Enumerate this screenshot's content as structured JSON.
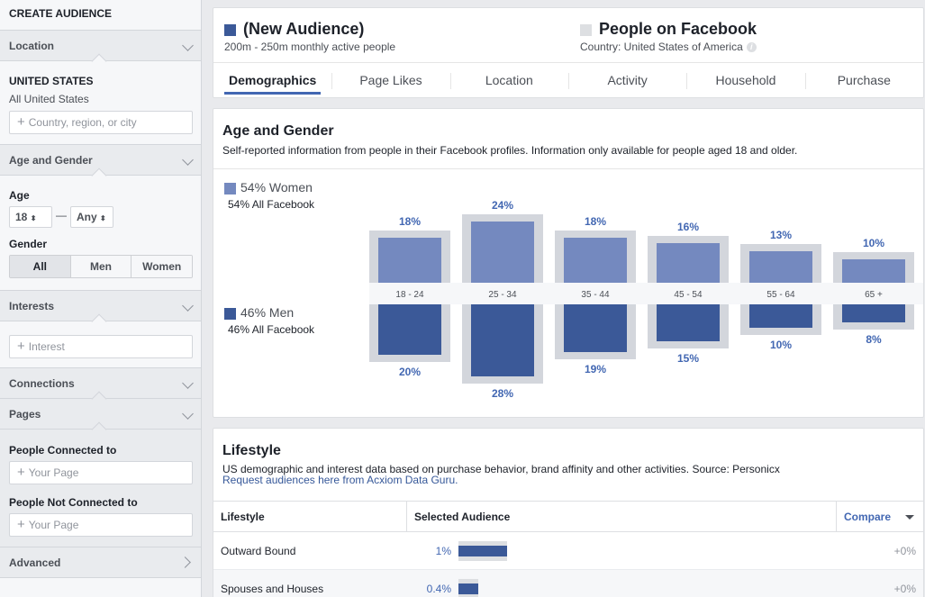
{
  "sidebar": {
    "title": "CREATE AUDIENCE",
    "location": {
      "header": "Location",
      "country": "UNITED STATES",
      "scope": "All United States",
      "placeholder": "Country, region, or city"
    },
    "age_gender": {
      "header": "Age and Gender",
      "age_label": "Age",
      "age_min": "18",
      "age_sep": "—",
      "age_max": "Any",
      "gender_label": "Gender",
      "genders": [
        "All",
        "Men",
        "Women"
      ]
    },
    "interests": {
      "header": "Interests",
      "placeholder": "Interest"
    },
    "connections": {
      "header": "Connections"
    },
    "pages": {
      "header": "Pages",
      "connected_label": "People Connected to",
      "connected_placeholder": "Your Page",
      "not_connected_label": "People Not Connected to",
      "not_connected_placeholder": "Your Page"
    },
    "advanced": {
      "header": "Advanced"
    }
  },
  "header": {
    "audience_title": "(New Audience)",
    "audience_sub": "200m - 250m monthly active people",
    "fb_title": "People on Facebook",
    "fb_sub": "Country: United States of America",
    "info_glyph": "i",
    "tabs": [
      "Demographics",
      "Page Likes",
      "Location",
      "Activity",
      "Household",
      "Purchase"
    ],
    "active_tab": 0
  },
  "colors": {
    "audience": "#3b5998",
    "facebook": "#dddfe2",
    "women": "#7489bf",
    "men": "#3b5998",
    "bg_bar": "#d3d6dc",
    "label": "#4267b2"
  },
  "age_gender": {
    "title": "Age and Gender",
    "description": "Self-reported information from people in their Facebook profiles. Information only available for people aged 18 and older.",
    "women_label": "54% Women",
    "women_sub": "54% All Facebook",
    "men_label": "46% Men",
    "men_sub": "46% All Facebook"
  },
  "chart_data": {
    "type": "bar",
    "categories": [
      "18 - 24",
      "25 - 34",
      "35 - 44",
      "45 - 54",
      "55 - 64",
      "65 +"
    ],
    "series": [
      {
        "name": "Women",
        "values": [
          18,
          24,
          18,
          16,
          13,
          10
        ],
        "labels": [
          "18%",
          "24%",
          "18%",
          "16%",
          "13%",
          "10%"
        ]
      },
      {
        "name": "Men",
        "values": [
          20,
          28,
          19,
          15,
          10,
          8
        ],
        "labels": [
          "20%",
          "28%",
          "19%",
          "15%",
          "10%",
          "8%"
        ]
      }
    ],
    "benchmark": {
      "women": [
        18,
        24,
        18,
        16,
        13,
        10
      ],
      "men": [
        20,
        28,
        19,
        15,
        10,
        8
      ]
    },
    "ylim": [
      0,
      28
    ]
  },
  "lifestyle": {
    "title": "Lifestyle",
    "description": "US demographic and interest data based on purchase behavior, brand affinity and other activities. Source: Personicx",
    "link": "Request audiences here from Acxiom Data Guru.",
    "col_lifestyle": "Lifestyle",
    "col_selected": "Selected Audience",
    "col_compare": "Compare",
    "rows": [
      {
        "name": "Outward Bound",
        "pct": "1%",
        "value": 1.0,
        "compare": "+0%"
      },
      {
        "name": "Spouses and Houses",
        "pct": "0.4%",
        "value": 0.4,
        "compare": "+0%"
      }
    ]
  }
}
